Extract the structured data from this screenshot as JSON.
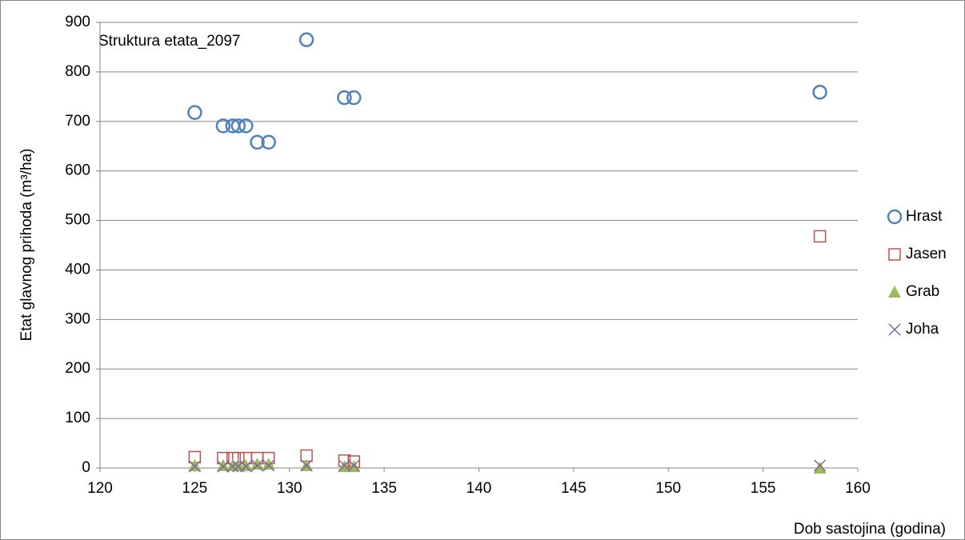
{
  "chart_data": {
    "type": "scatter",
    "title": "Struktura etata_2097",
    "x_label": "Dob sastojina (godina)",
    "y_label": "Etat glavnog prihoda (m³/ha)",
    "x": [
      125,
      126.5,
      127,
      127.3,
      127.7,
      128.3,
      128.9,
      130.9,
      132.9,
      133.4,
      158
    ],
    "series": [
      {
        "name": "Hrast",
        "color": "#4f81bd",
        "marker": "circle",
        "values": [
          718,
          691,
          691,
          691,
          691,
          658,
          658,
          865,
          748,
          748,
          759
        ]
      },
      {
        "name": "Jasen",
        "color": "#c0504d",
        "marker": "square",
        "values": [
          22,
          20,
          20,
          20,
          20,
          20,
          20,
          25,
          15,
          13,
          468
        ]
      },
      {
        "name": "Grab",
        "color": "#9bbb59",
        "marker": "triangle",
        "values": [
          5,
          5,
          5,
          5,
          5,
          8,
          8,
          5,
          3,
          3,
          0
        ]
      },
      {
        "name": "Joha",
        "color": "#8064a2",
        "marker": "x",
        "values": [
          3,
          3,
          3,
          3,
          3,
          5,
          5,
          5,
          5,
          5,
          5
        ]
      }
    ],
    "xlim": [
      120,
      160
    ],
    "xticks": [
      120,
      125,
      130,
      135,
      140,
      145,
      150,
      155,
      160
    ],
    "ylim": [
      0,
      900
    ],
    "yticks": [
      0,
      100,
      200,
      300,
      400,
      500,
      600,
      700,
      800,
      900
    ],
    "grid": true,
    "legend": "right"
  }
}
